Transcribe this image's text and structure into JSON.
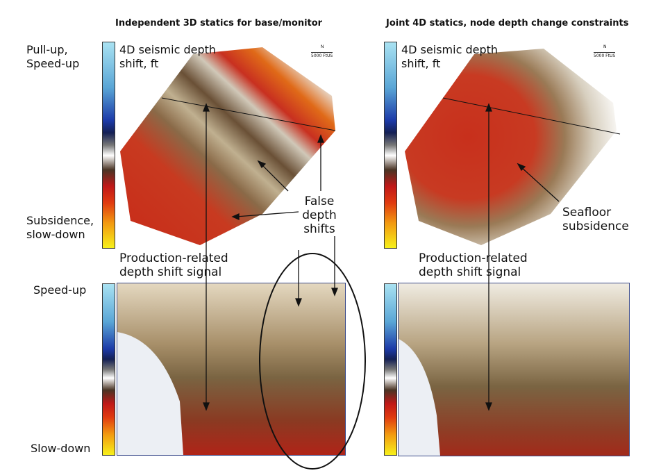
{
  "titles": {
    "left": "Independent 3D statics for base/monitor",
    "right": "Joint 4D statics, node depth change constraints"
  },
  "colorbar_labels": {
    "top_map_high": "Pull-up, Speed-up",
    "top_map_low": "Subsidence, slow-down",
    "section_high": "Speed-up",
    "section_low": "Slow-down"
  },
  "map_legend": "4D seismic depth shift, ft",
  "north_label": "N",
  "scale_label": "5000 FtUS",
  "annotations": {
    "false_shifts": "False depth shifts",
    "production_signal": "Production-related depth shift signal",
    "seafloor": "Seafloor subsidence"
  },
  "colors": {
    "speed_up": "#1c3aa8",
    "neutral": "#ffffff",
    "brown": "#7a6440",
    "subsidence": "#c01818",
    "slow_down_max": "#f7f01a"
  }
}
